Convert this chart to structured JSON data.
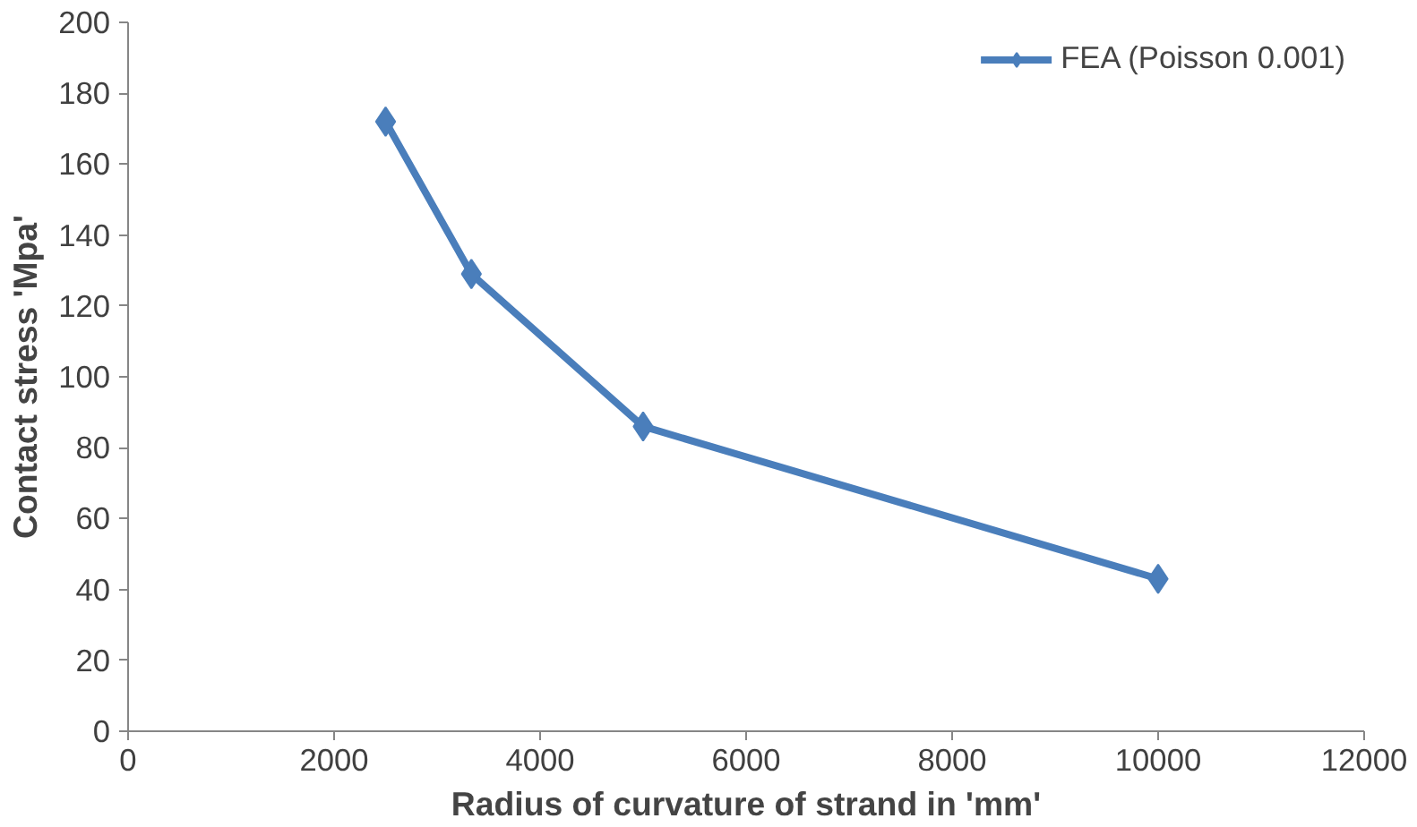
{
  "chart_data": {
    "type": "line",
    "xlabel": "Radius of curvature of strand in 'mm'",
    "ylabel": "Contact stress 'Mpa'",
    "x": [
      2500,
      3333,
      5000,
      10000
    ],
    "series": [
      {
        "name": "FEA (Poisson 0.001)",
        "color": "#4a7ebb",
        "values": [
          172,
          129,
          86,
          43
        ]
      }
    ],
    "xlim": [
      0,
      12000
    ],
    "xticks": [
      0,
      2000,
      4000,
      6000,
      8000,
      10000,
      12000
    ],
    "ylim": [
      0,
      200
    ],
    "yticks": [
      0,
      20,
      40,
      60,
      80,
      100,
      120,
      140,
      160,
      180,
      200
    ],
    "grid": false,
    "legend": "top right",
    "marker": "diamond",
    "line_style": "solid"
  }
}
